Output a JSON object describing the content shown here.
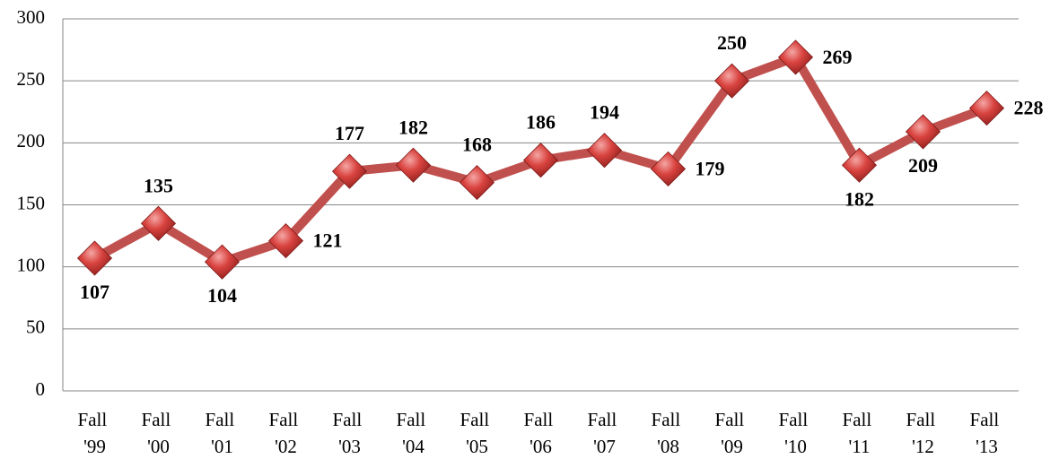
{
  "chart_data": {
    "type": "line",
    "categories": [
      "Fall '99",
      "Fall '00",
      "Fall '01",
      "Fall '02",
      "Fall '03",
      "Fall '04",
      "Fall '05",
      "Fall '06",
      "Fall '07",
      "Fall '08",
      "Fall '09",
      "Fall '10",
      "Fall '11",
      "Fall '12",
      "Fall '13"
    ],
    "series": [
      {
        "color": "#c0504d",
        "values": [
          107,
          135,
          104,
          121,
          177,
          182,
          168,
          186,
          194,
          179,
          250,
          269,
          182,
          209,
          228
        ]
      }
    ],
    "ylim": [
      0,
      300
    ],
    "yticks": [
      0,
      50,
      100,
      150,
      200,
      250,
      300
    ],
    "grid": true
  }
}
